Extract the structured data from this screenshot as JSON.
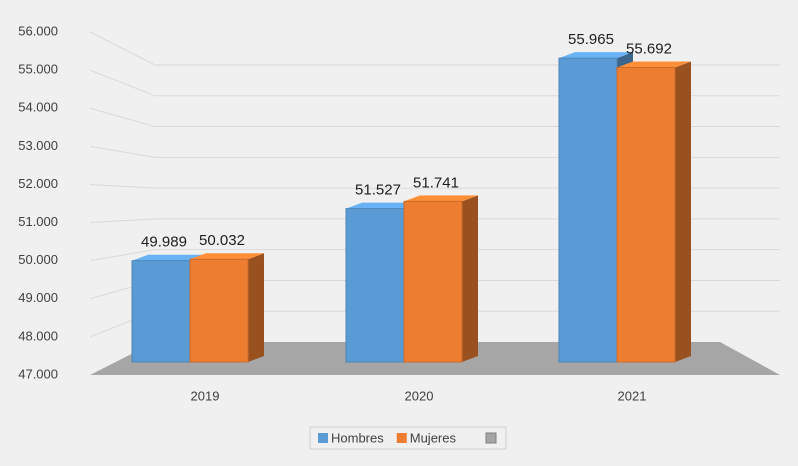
{
  "chart_data": {
    "type": "bar3d",
    "categories": [
      "2019",
      "2020",
      "2021"
    ],
    "series": [
      {
        "name": "Hombres",
        "color": "#5b9bd5",
        "values": [
          49989,
          51527,
          55965
        ],
        "value_labels": [
          "49.989",
          "51.527",
          "55.965"
        ]
      },
      {
        "name": "Mujeres",
        "color": "#ed7d31",
        "values": [
          50032,
          51741,
          55692
        ],
        "value_labels": [
          "50.032",
          "51.741",
          "55.692"
        ]
      }
    ],
    "ylim": [
      47000,
      56000
    ],
    "yticks": [
      {
        "value": 47000,
        "label": "47.000"
      },
      {
        "value": 48000,
        "label": "48.000"
      },
      {
        "value": 49000,
        "label": "49.000"
      },
      {
        "value": 50000,
        "label": "50.000"
      },
      {
        "value": 51000,
        "label": "51.000"
      },
      {
        "value": 52000,
        "label": "52.000"
      },
      {
        "value": 53000,
        "label": "53.000"
      },
      {
        "value": 54000,
        "label": "54.000"
      },
      {
        "value": 55000,
        "label": "55.000"
      },
      {
        "value": 56000,
        "label": "56.000"
      }
    ],
    "grid": true,
    "legend": "bottom"
  }
}
